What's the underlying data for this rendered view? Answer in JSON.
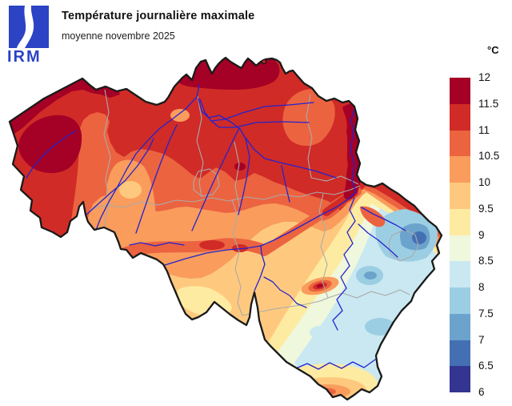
{
  "header": {
    "title": "Température journalière maximale",
    "subtitle": "moyenne novembre 2025",
    "logo_text": "IRM",
    "logo_color": "#2B43C4"
  },
  "legend": {
    "unit": "°C",
    "labels": [
      "12",
      "11.5",
      "11",
      "10.5",
      "10",
      "9.5",
      "9",
      "8.5",
      "8",
      "7.5",
      "7",
      "6.5",
      "6"
    ],
    "band_colors": [
      "#A50026",
      "#D02B27",
      "#EC6340",
      "#F99C5C",
      "#FEC97E",
      "#FEEBA2",
      "#EFF7DC",
      "#C9E8F2",
      "#9CCEE3",
      "#6BA3CC",
      "#4470B3",
      "#333591"
    ]
  },
  "map": {
    "country": "Belgique",
    "background": "#FFFFFF",
    "border_color": "#1A1A1A",
    "province_border_color": "#ABABAB",
    "river_color": "#2323CE"
  }
}
